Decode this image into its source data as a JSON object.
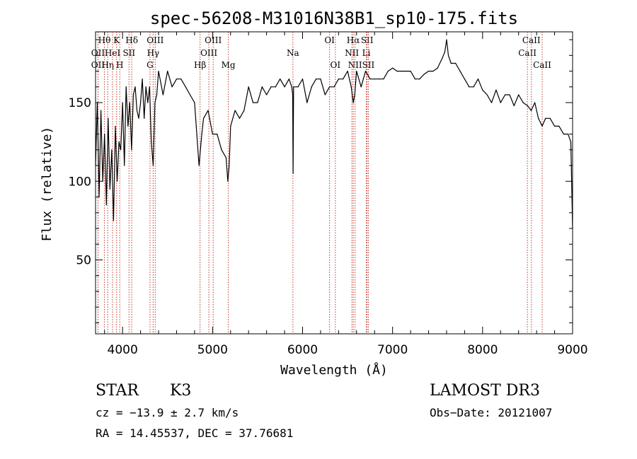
{
  "chart_data": {
    "type": "line",
    "title": "spec-56208-M31016N38B1_sp10-175.fits",
    "xlabel": "Wavelength (Å)",
    "ylabel": "Flux (relative)",
    "xlim": [
      3700,
      9000
    ],
    "ylim": [
      3,
      195
    ],
    "xticks": [
      4000,
      5000,
      6000,
      7000,
      8000,
      9000
    ],
    "yticks": [
      50,
      100,
      150
    ],
    "series": [
      {
        "name": "spectrum",
        "x": [
          3700,
          3720,
          3740,
          3760,
          3780,
          3800,
          3820,
          3840,
          3860,
          3880,
          3900,
          3920,
          3940,
          3960,
          3980,
          4000,
          4020,
          4040,
          4060,
          4080,
          4100,
          4120,
          4140,
          4160,
          4180,
          4200,
          4220,
          4240,
          4260,
          4280,
          4300,
          4320,
          4340,
          4360,
          4380,
          4400,
          4450,
          4500,
          4550,
          4600,
          4650,
          4700,
          4750,
          4800,
          4850,
          4880,
          4900,
          4950,
          5000,
          5050,
          5100,
          5150,
          5170,
          5185,
          5200,
          5250,
          5300,
          5350,
          5400,
          5450,
          5500,
          5550,
          5600,
          5650,
          5700,
          5750,
          5800,
          5850,
          5880,
          5890,
          5895,
          5900,
          5950,
          6000,
          6050,
          6100,
          6150,
          6200,
          6250,
          6300,
          6350,
          6400,
          6450,
          6500,
          6540,
          6563,
          6580,
          6600,
          6650,
          6700,
          6750,
          6800,
          6850,
          6900,
          6950,
          7000,
          7050,
          7100,
          7150,
          7200,
          7250,
          7300,
          7350,
          7400,
          7450,
          7500,
          7550,
          7580,
          7600,
          7620,
          7650,
          7700,
          7750,
          7800,
          7850,
          7900,
          7950,
          8000,
          8050,
          8100,
          8150,
          8200,
          8250,
          8300,
          8350,
          8400,
          8450,
          8500,
          8540,
          8580,
          8620,
          8662,
          8700,
          8750,
          8800,
          8850,
          8900,
          8950,
          8980,
          9000
        ],
        "y": [
          110,
          150,
          90,
          145,
          100,
          130,
          85,
          140,
          95,
          120,
          75,
          135,
          100,
          125,
          120,
          150,
          110,
          160,
          135,
          150,
          120,
          155,
          160,
          145,
          140,
          150,
          165,
          140,
          160,
          150,
          160,
          125,
          110,
          150,
          155,
          170,
          155,
          170,
          160,
          165,
          165,
          160,
          155,
          150,
          110,
          130,
          140,
          145,
          130,
          130,
          120,
          115,
          100,
          110,
          135,
          145,
          140,
          145,
          160,
          150,
          150,
          160,
          155,
          160,
          160,
          165,
          160,
          165,
          160,
          155,
          105,
          160,
          160,
          165,
          150,
          160,
          165,
          165,
          155,
          160,
          160,
          165,
          165,
          170,
          160,
          150,
          155,
          170,
          160,
          170,
          165,
          165,
          165,
          165,
          170,
          172,
          170,
          170,
          170,
          170,
          165,
          165,
          168,
          170,
          170,
          172,
          178,
          182,
          190,
          180,
          175,
          175,
          170,
          165,
          160,
          160,
          165,
          158,
          155,
          150,
          158,
          150,
          155,
          155,
          148,
          155,
          150,
          148,
          145,
          150,
          140,
          135,
          140,
          140,
          135,
          135,
          130,
          130,
          125,
          70
        ]
      }
    ],
    "lines": [
      {
        "name": "OII",
        "x": 3727,
        "row": 2
      },
      {
        "name": "OII",
        "x": 3727,
        "row": 3
      },
      {
        "name": "Hθ",
        "x": 3798,
        "row": 1
      },
      {
        "name": "Hη",
        "x": 3835,
        "row": 3
      },
      {
        "name": "HeI",
        "x": 3889,
        "row": 2
      },
      {
        "name": "K",
        "x": 3934,
        "row": 1
      },
      {
        "name": "H",
        "x": 3969,
        "row": 3
      },
      {
        "name": "SII",
        "x": 4072,
        "row": 2
      },
      {
        "name": "Hδ",
        "x": 4102,
        "row": 1
      },
      {
        "name": "G",
        "x": 4305,
        "row": 3
      },
      {
        "name": "Hγ",
        "x": 4340,
        "row": 2
      },
      {
        "name": "OIII",
        "x": 4363,
        "row": 1
      },
      {
        "name": "Hβ",
        "x": 4861,
        "row": 3
      },
      {
        "name": "OIII",
        "x": 4959,
        "row": 2
      },
      {
        "name": "OIII",
        "x": 5007,
        "row": 1
      },
      {
        "name": "Mg",
        "x": 5175,
        "row": 3
      },
      {
        "name": "Na",
        "x": 5893,
        "row": 2
      },
      {
        "name": "OI",
        "x": 6300,
        "row": 1
      },
      {
        "name": "OI",
        "x": 6364,
        "row": 3
      },
      {
        "name": "NII",
        "x": 6548,
        "row": 2
      },
      {
        "name": "Hα",
        "x": 6563,
        "row": 1
      },
      {
        "name": "NII",
        "x": 6583,
        "row": 3
      },
      {
        "name": "Li",
        "x": 6708,
        "row": 2
      },
      {
        "name": "SII",
        "x": 6717,
        "row": 1
      },
      {
        "name": "SII",
        "x": 6731,
        "row": 3
      },
      {
        "name": "CaII",
        "x": 8498,
        "row": 2
      },
      {
        "name": "CaII",
        "x": 8542,
        "row": 1
      },
      {
        "name": "CaII",
        "x": 8662,
        "row": 3
      }
    ]
  },
  "info": {
    "object_class": "STAR",
    "subclass": "K3",
    "redshift": "cz = −13.9 ± 2.7 km/s",
    "coords": "RA =  14.45537, DEC =  37.76681",
    "survey": "LAMOST DR3",
    "obs_date": "Obs−Date: 20121007"
  }
}
